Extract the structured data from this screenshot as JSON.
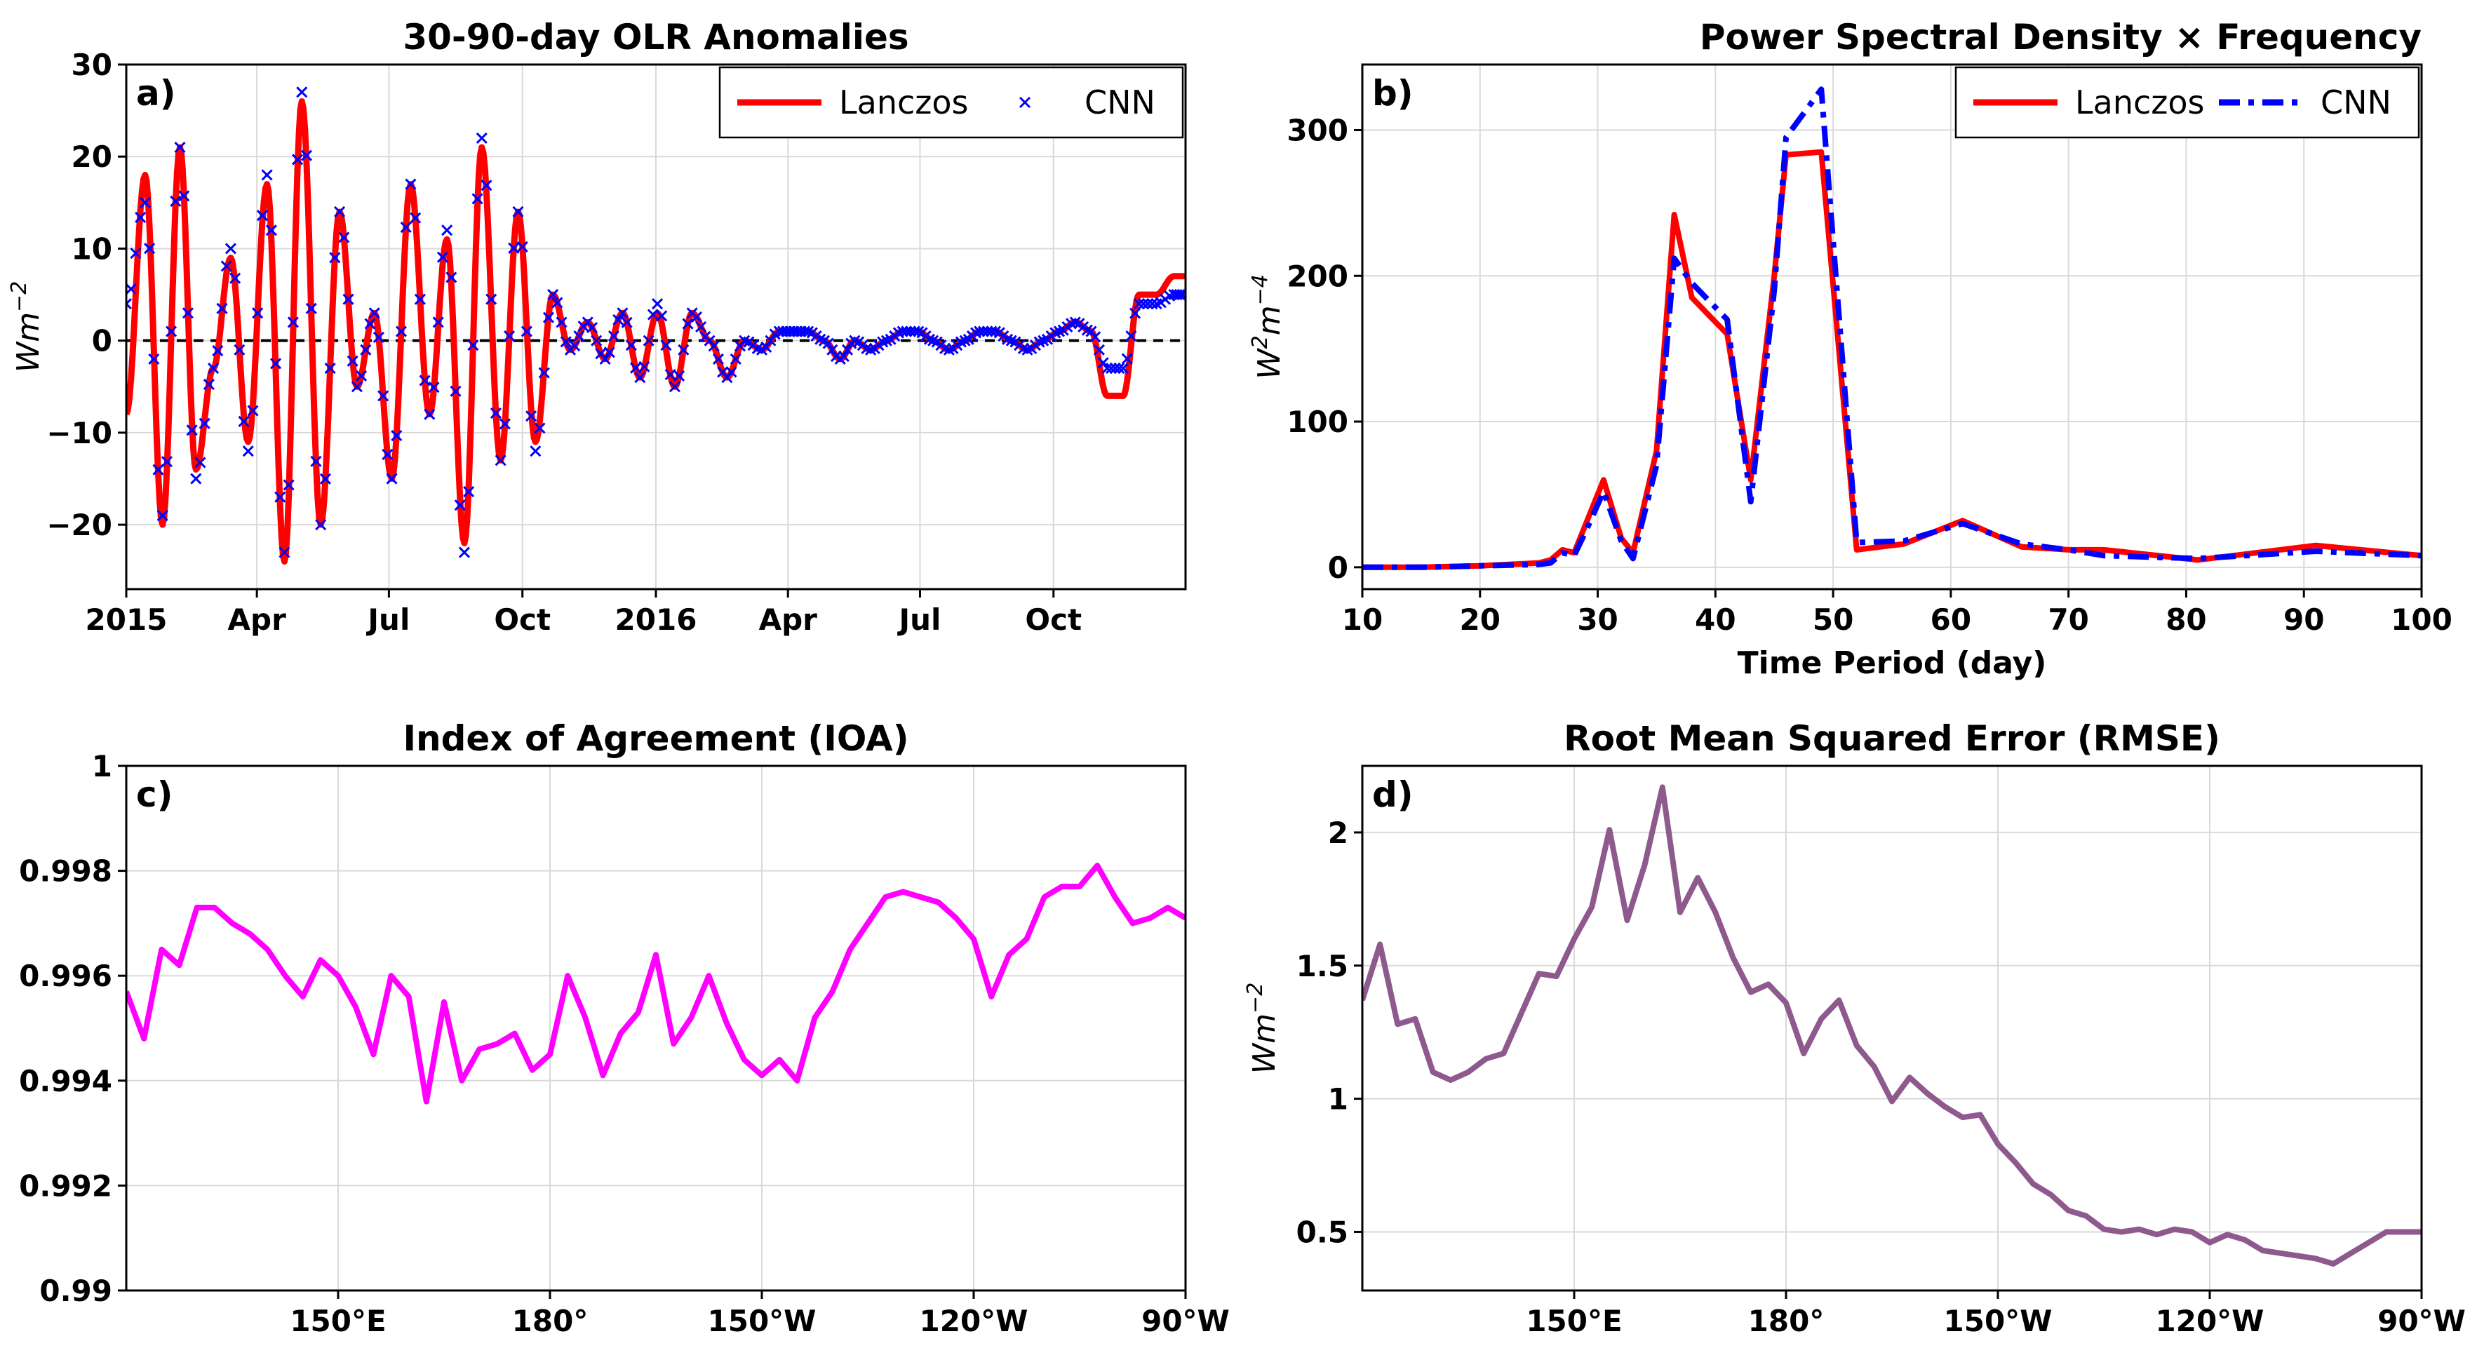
{
  "chart_data": [
    {
      "panel": "a)",
      "type": "line",
      "title": "30-90-day OLR Anomalies",
      "xlabel": "",
      "ylabel": "Wm",
      "ylabel_sup": "−2",
      "xlim": [
        0,
        730
      ],
      "ylim": [
        -27,
        30
      ],
      "yticks": [
        30,
        20,
        10,
        0,
        -10,
        -20
      ],
      "ytick_labels": [
        "30",
        "20",
        "10",
        "0",
        "−10",
        "−20"
      ],
      "xticks": [
        0,
        90,
        181,
        273,
        365,
        456,
        547,
        639
      ],
      "xtick_labels": [
        "2015",
        "Apr",
        "Jul",
        "Oct",
        "2016",
        "Apr",
        "Jul",
        "Oct"
      ],
      "zero_line": true,
      "grid": true,
      "legend_position": "top-right",
      "series": [
        {
          "name": "Lanczos",
          "style": "solid-line",
          "color": "#ff0000",
          "x": [
            0,
            13,
            25,
            37,
            48,
            60,
            72,
            84,
            97,
            109,
            121,
            134,
            147,
            159,
            171,
            183,
            196,
            209,
            221,
            233,
            245,
            258,
            270,
            282,
            294,
            306,
            318,
            330,
            342,
            354,
            366,
            378,
            390,
            402,
            414,
            426,
            438,
            450,
            460,
            470,
            481,
            492,
            502,
            513,
            524,
            535,
            546,
            556,
            567,
            578,
            588,
            599,
            610,
            621,
            632,
            643,
            654,
            665,
            676,
            687,
            698,
            710,
            722,
            730
          ],
          "y": [
            -8,
            18,
            -20,
            21,
            -14,
            -3,
            9,
            -11,
            17,
            -24,
            26,
            -20,
            14,
            -5,
            3,
            -15,
            17,
            -8,
            11,
            -22,
            21,
            -13,
            14,
            -11,
            5,
            -1,
            2,
            -2,
            3,
            -4,
            3,
            -5,
            3,
            0,
            -4,
            0,
            -1,
            1,
            1,
            1,
            0,
            -2,
            0,
            -1,
            0,
            1,
            1,
            0,
            -1,
            0,
            1,
            1,
            0,
            -1,
            0,
            1,
            2,
            1,
            -6,
            -6,
            5,
            5,
            7,
            7
          ]
        },
        {
          "name": "CNN",
          "style": "x-markers",
          "color": "#0000ff",
          "x": [
            0,
            13,
            25,
            37,
            48,
            60,
            72,
            84,
            97,
            109,
            121,
            134,
            147,
            159,
            171,
            183,
            196,
            209,
            221,
            233,
            245,
            258,
            270,
            282,
            294,
            306,
            318,
            330,
            342,
            354,
            366,
            378,
            390,
            402,
            414,
            426,
            438,
            450,
            460,
            470,
            481,
            492,
            502,
            513,
            524,
            535,
            546,
            556,
            567,
            578,
            588,
            599,
            610,
            621,
            632,
            643,
            654,
            665,
            676,
            687,
            698,
            710,
            722,
            730
          ],
          "y": [
            4,
            15,
            -19,
            21,
            -15,
            -3,
            10,
            -12,
            18,
            -23,
            27,
            -20,
            14,
            -5,
            3,
            -15,
            17,
            -8,
            12,
            -23,
            22,
            -13,
            14,
            -12,
            5,
            -1,
            2,
            -2,
            3,
            -4,
            4,
            -5,
            3,
            0,
            -4,
            0,
            -1,
            1,
            1,
            1,
            0,
            -2,
            0,
            -1,
            0,
            1,
            1,
            0,
            -1,
            0,
            1,
            1,
            0,
            -1,
            0,
            1,
            2,
            1,
            -3,
            -3,
            4,
            4,
            5,
            5
          ]
        }
      ]
    },
    {
      "panel": "b)",
      "type": "line",
      "title": "Power Spectral Density × Frequency",
      "xlabel": "Time Period (day)",
      "ylabel": "W",
      "ylabel_sup1": "2",
      "ylabel_mid": "m",
      "ylabel_sup2": "−4",
      "xlim": [
        10,
        100
      ],
      "ylim": [
        -15,
        345
      ],
      "xticks": [
        10,
        20,
        30,
        40,
        50,
        60,
        70,
        80,
        90,
        100
      ],
      "xtick_labels": [
        "10",
        "20",
        "30",
        "40",
        "50",
        "60",
        "70",
        "80",
        "90",
        "100"
      ],
      "yticks": [
        0,
        100,
        200,
        300
      ],
      "ytick_labels": [
        "0",
        "100",
        "200",
        "300"
      ],
      "grid": true,
      "legend_position": "top-right",
      "series": [
        {
          "name": "Lanczos",
          "style": "solid",
          "color": "#ff0000",
          "x": [
            10,
            15,
            20,
            25,
            26,
            27,
            28,
            29,
            30.5,
            32,
            33,
            35,
            36.5,
            38,
            41,
            43,
            45,
            46,
            49,
            52,
            56,
            61,
            66,
            70,
            73,
            81,
            91,
            100
          ],
          "y": [
            0,
            0,
            1,
            3,
            5,
            12,
            10,
            30,
            60,
            20,
            10,
            80,
            242,
            185,
            160,
            60,
            200,
            283,
            285,
            12,
            16,
            32,
            14,
            12,
            12,
            5,
            15,
            8
          ]
        },
        {
          "name": "CNN",
          "style": "dash-dot",
          "color": "#0000ff",
          "x": [
            10,
            15,
            20,
            25,
            26,
            27,
            28,
            29,
            30.5,
            32,
            33,
            35,
            36.5,
            38,
            41,
            43,
            45,
            46,
            49,
            52,
            56,
            61,
            66,
            70,
            73,
            81,
            91,
            100
          ],
          "y": [
            0,
            0,
            1,
            2,
            3,
            10,
            8,
            25,
            52,
            18,
            6,
            70,
            212,
            195,
            170,
            45,
            190,
            295,
            328,
            17,
            18,
            30,
            16,
            12,
            8,
            6,
            11,
            8
          ]
        }
      ]
    },
    {
      "panel": "c)",
      "type": "line",
      "title": "Index of Agreement (IOA)",
      "xlabel": "",
      "ylabel": "",
      "xlim": [
        120,
        270
      ],
      "ylim": [
        0.99,
        1.0
      ],
      "xticks": [
        150,
        180,
        210,
        240,
        270
      ],
      "xtick_labels": [
        "150°E",
        "180°",
        "150°W",
        "120°W",
        "90°W"
      ],
      "yticks": [
        0.99,
        0.992,
        0.994,
        0.996,
        0.998,
        1.0
      ],
      "ytick_labels": [
        "0.99",
        "0.992",
        "0.994",
        "0.996",
        "0.998",
        "1"
      ],
      "grid": true,
      "series": [
        {
          "name": "",
          "color": "#ff00ff",
          "x": [
            120,
            122.5,
            125,
            127.5,
            130,
            132.5,
            135,
            137.5,
            140,
            142.5,
            145,
            147.5,
            150,
            152.5,
            155,
            157.5,
            160,
            162.5,
            165,
            167.5,
            170,
            172.5,
            175,
            177.5,
            180,
            182.5,
            185,
            187.5,
            190,
            192.5,
            195,
            197.5,
            200,
            202.5,
            205,
            207.5,
            210,
            212.5,
            215,
            217.5,
            220,
            222.5,
            225,
            227.5,
            230,
            232.5,
            235,
            237.5,
            240,
            242.5,
            245,
            247.5,
            250,
            252.5,
            255,
            257.5,
            260,
            262.5,
            265,
            267.5,
            270
          ],
          "y": [
            0.9957,
            0.9948,
            0.9965,
            0.9962,
            0.9973,
            0.9973,
            0.997,
            0.9968,
            0.9965,
            0.996,
            0.9956,
            0.9963,
            0.996,
            0.9954,
            0.9945,
            0.996,
            0.9956,
            0.9936,
            0.9955,
            0.994,
            0.9946,
            0.9947,
            0.9949,
            0.9942,
            0.9945,
            0.996,
            0.9952,
            0.9941,
            0.9949,
            0.9953,
            0.9964,
            0.9947,
            0.9952,
            0.996,
            0.9951,
            0.9944,
            0.9941,
            0.9944,
            0.994,
            0.9952,
            0.9957,
            0.9965,
            0.997,
            0.9975,
            0.9976,
            0.9975,
            0.9974,
            0.9971,
            0.9967,
            0.9956,
            0.9964,
            0.9967,
            0.9975,
            0.9977,
            0.9977,
            0.9981,
            0.9975,
            0.997,
            0.9971,
            0.9973,
            0.9971
          ]
        }
      ]
    },
    {
      "panel": "d)",
      "type": "line",
      "title": "Root Mean Squared Error (RMSE)",
      "xlabel": "",
      "ylabel": "Wm",
      "ylabel_sup": "−2",
      "xlim": [
        120,
        270
      ],
      "ylim": [
        0.28,
        2.25
      ],
      "xticks": [
        150,
        180,
        210,
        240,
        270
      ],
      "xtick_labels": [
        "150°E",
        "180°",
        "150°W",
        "120°W",
        "90°W"
      ],
      "yticks": [
        0.5,
        1.0,
        1.5,
        2.0
      ],
      "ytick_labels": [
        "0.5",
        "1",
        "1.5",
        "2"
      ],
      "grid": true,
      "series": [
        {
          "name": "",
          "color": "#8e5a8e",
          "x": [
            120,
            122.5,
            125,
            127.5,
            130,
            132.5,
            135,
            137.5,
            140,
            142.5,
            145,
            147.5,
            150,
            152.5,
            155,
            157.5,
            160,
            162.5,
            165,
            167.5,
            170,
            172.5,
            175,
            177.5,
            180,
            182.5,
            185,
            187.5,
            190,
            192.5,
            195,
            197.5,
            200,
            202.5,
            205,
            207.5,
            210,
            212.5,
            215,
            217.5,
            220,
            222.5,
            225,
            227.5,
            230,
            232.5,
            235,
            237.5,
            240,
            242.5,
            245,
            247.5,
            250,
            252.5,
            255,
            257.5,
            260,
            262.5,
            265,
            267.5,
            270
          ],
          "y": [
            1.37,
            1.58,
            1.28,
            1.3,
            1.1,
            1.07,
            1.1,
            1.15,
            1.17,
            1.32,
            1.47,
            1.46,
            1.6,
            1.72,
            2.01,
            1.67,
            1.88,
            2.17,
            1.7,
            1.83,
            1.7,
            1.53,
            1.4,
            1.43,
            1.36,
            1.17,
            1.3,
            1.37,
            1.2,
            1.12,
            0.99,
            1.08,
            1.02,
            0.97,
            0.93,
            0.94,
            0.83,
            0.76,
            0.68,
            0.64,
            0.58,
            0.56,
            0.51,
            0.5,
            0.51,
            0.49,
            0.51,
            0.5,
            0.46,
            0.49,
            0.47,
            0.43,
            0.42,
            0.41,
            0.4,
            0.38,
            0.42,
            0.46,
            0.5,
            0.5,
            0.5
          ]
        }
      ]
    }
  ]
}
